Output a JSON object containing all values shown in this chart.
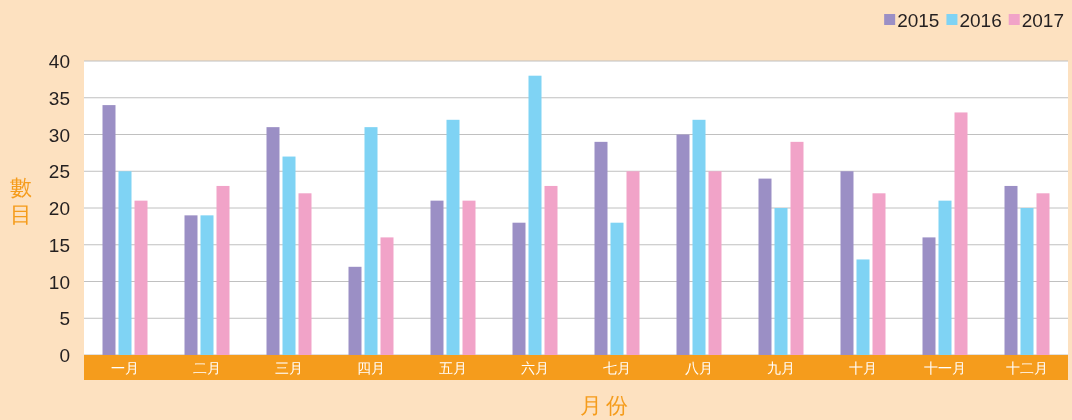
{
  "chart_data": {
    "type": "bar",
    "xlabel": "月份",
    "ylabel": "數目",
    "categories": [
      "一月",
      "二月",
      "三月",
      "四月",
      "五月",
      "六月",
      "七月",
      "八月",
      "九月",
      "十月",
      "十一月",
      "十二月"
    ],
    "series": [
      {
        "name": "2015",
        "color": "#9b8fc5",
        "values": [
          34,
          19,
          31,
          12,
          21,
          18,
          29,
          30,
          24,
          25,
          16,
          23
        ]
      },
      {
        "name": "2016",
        "color": "#7fd3f4",
        "values": [
          25,
          19,
          27,
          31,
          32,
          38,
          18,
          32,
          20,
          13,
          21,
          20
        ]
      },
      {
        "name": "2017",
        "color": "#f1a3c8",
        "values": [
          21,
          23,
          22,
          16,
          21,
          23,
          25,
          25,
          29,
          22,
          33,
          22
        ]
      }
    ],
    "ylim": [
      0,
      40
    ],
    "yticks": [
      0,
      5,
      10,
      15,
      20,
      25,
      30,
      35,
      40
    ],
    "grid": "y",
    "legend": "top right"
  }
}
